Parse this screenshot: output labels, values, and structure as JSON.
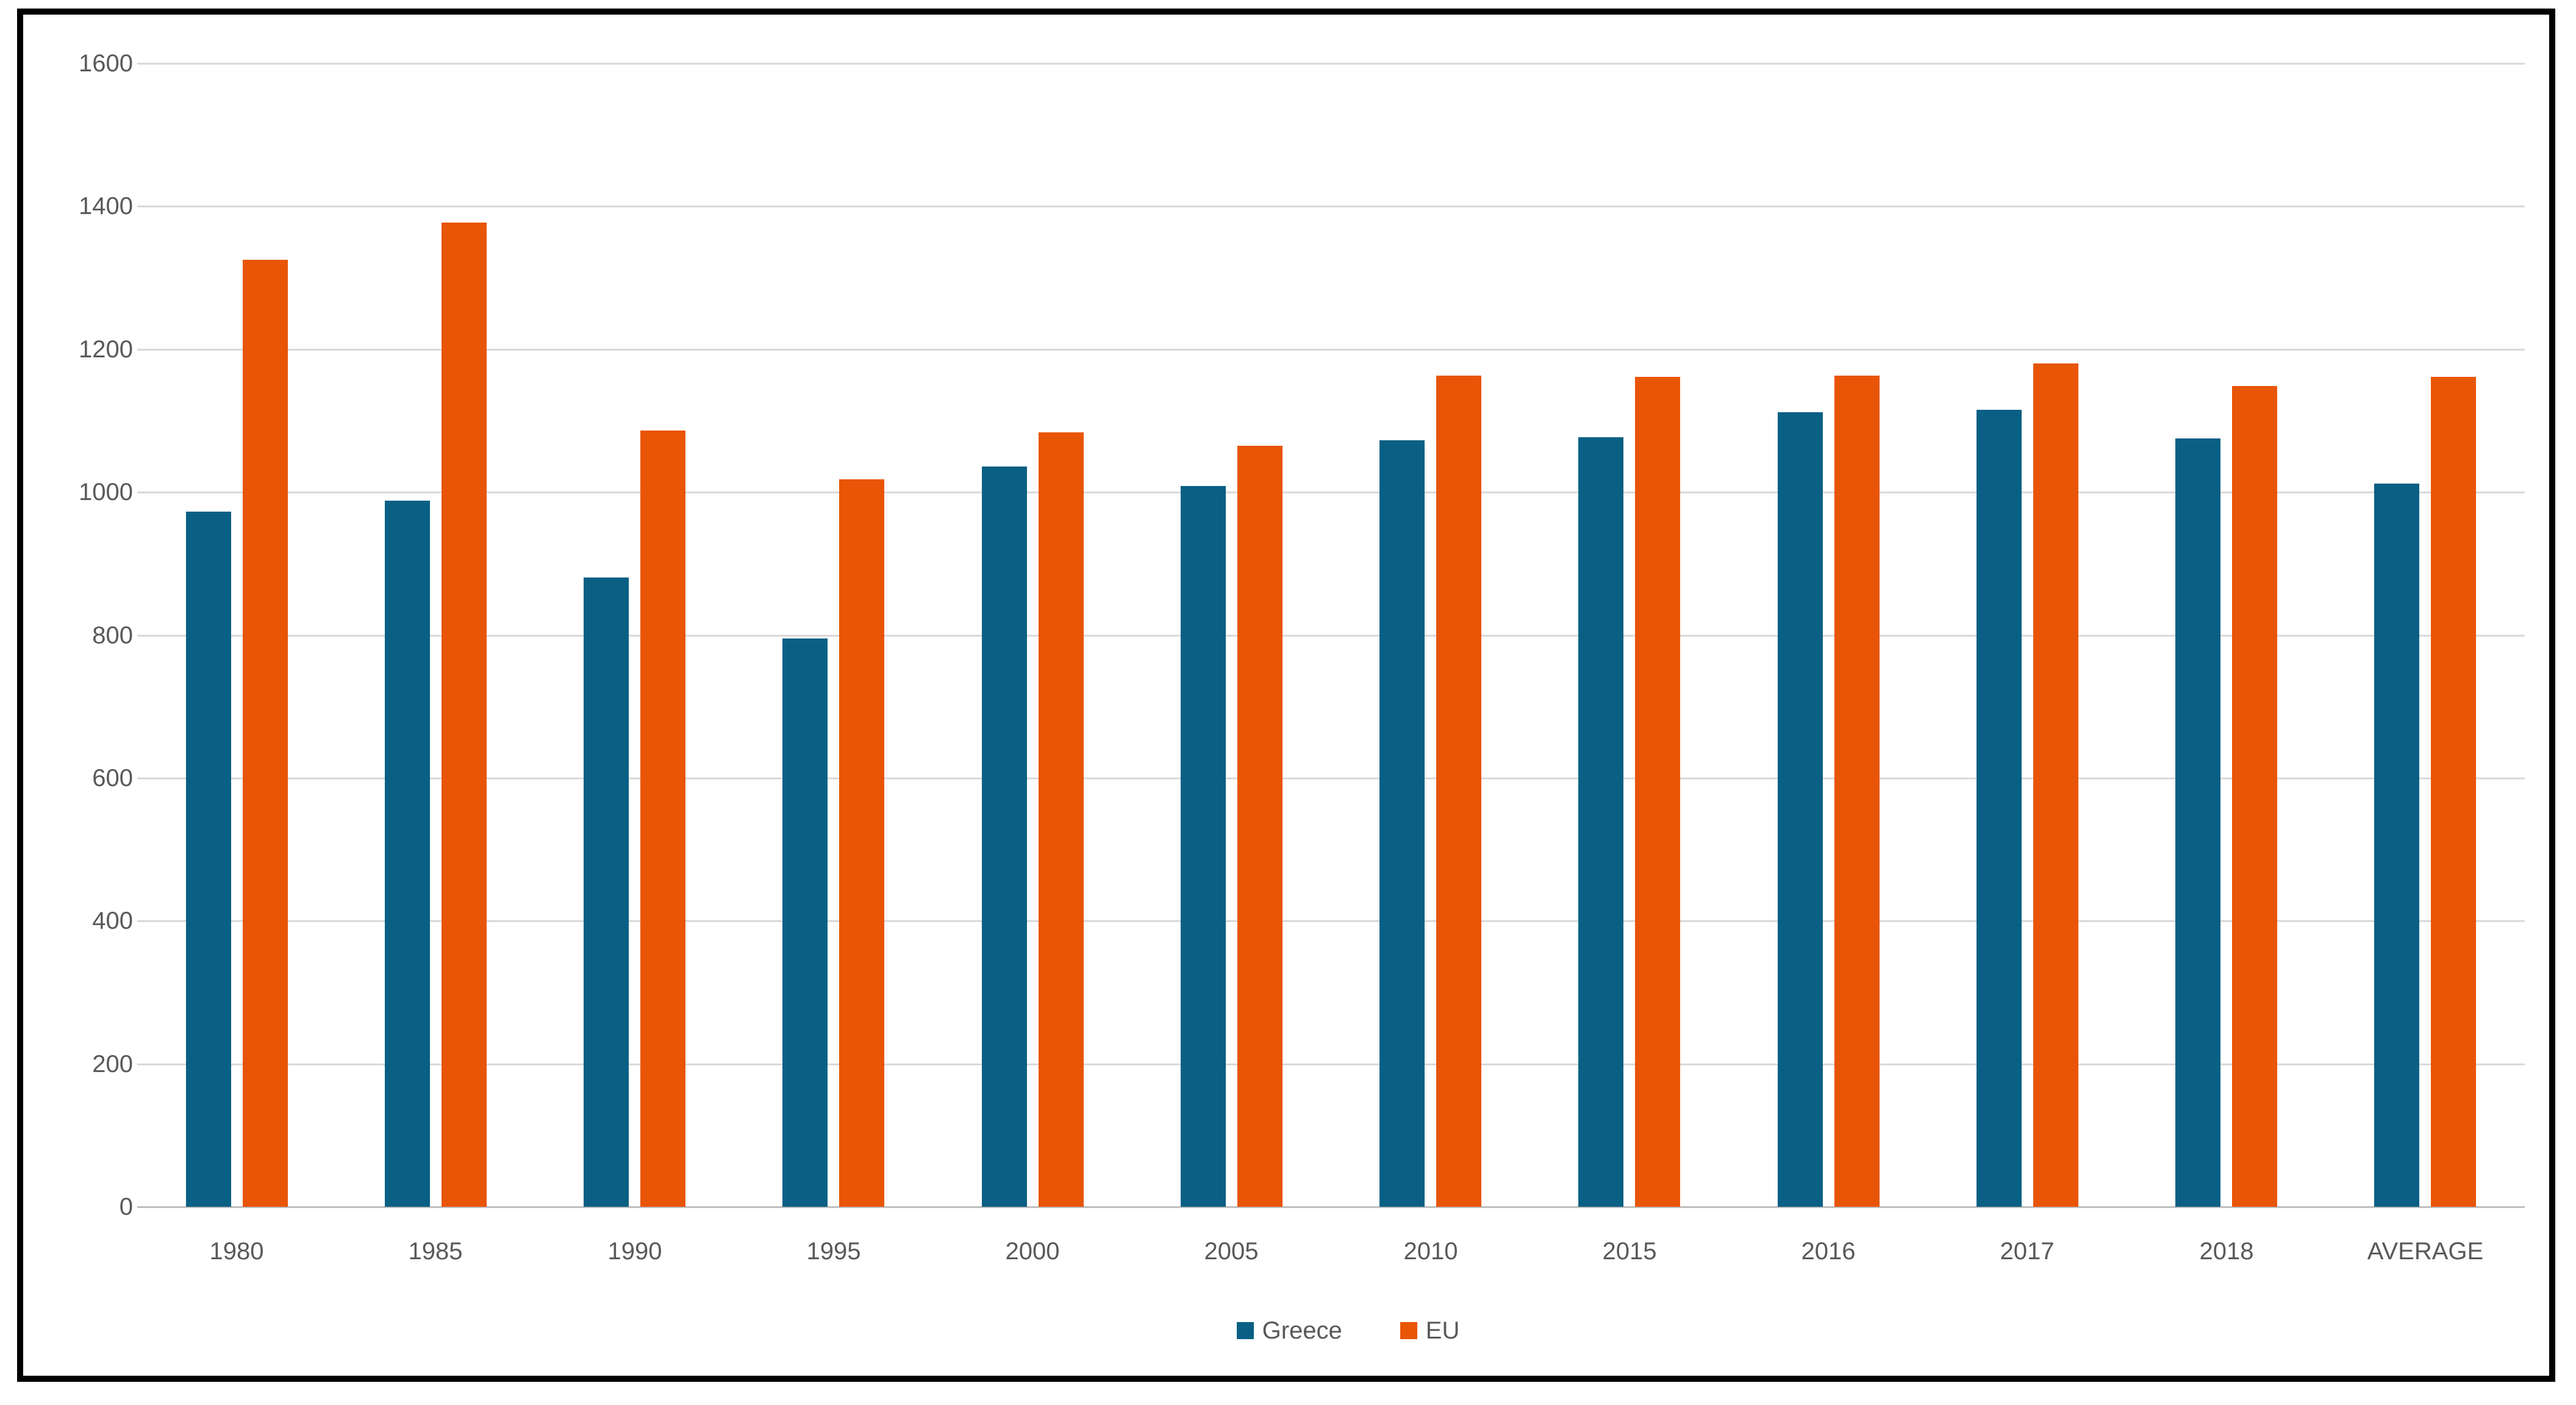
{
  "chart_data": {
    "type": "bar",
    "title": "",
    "xlabel": "",
    "ylabel": "",
    "categories": [
      "1980",
      "1985",
      "1990",
      "1995",
      "2000",
      "2005",
      "2010",
      "2015",
      "2016",
      "2017",
      "2018",
      "AVERAGE"
    ],
    "series": [
      {
        "name": "Greece",
        "color": "#0A6084",
        "values": [
          973,
          988,
          881,
          795,
          1036,
          1009,
          1073,
          1077,
          1112,
          1115,
          1075,
          1012
        ]
      },
      {
        "name": "EU",
        "color": "#E85506",
        "values": [
          1325,
          1377,
          1086,
          1018,
          1084,
          1065,
          1163,
          1161,
          1163,
          1180,
          1149,
          1161
        ]
      }
    ],
    "ylim": [
      0,
      1600
    ],
    "ytick_interval": 200,
    "ytick_labels": [
      "0",
      "200",
      "400",
      "600",
      "800",
      "1000",
      "1200",
      "1400",
      "1600"
    ],
    "grid": true,
    "legend_position": "bottom"
  },
  "styles": {
    "frame_border_color": "#000000",
    "background_color": "#FFFFFF",
    "gridline_color": "#D9D9D9",
    "zeroline_color": "#BFBFBF",
    "text_color": "#595959"
  }
}
